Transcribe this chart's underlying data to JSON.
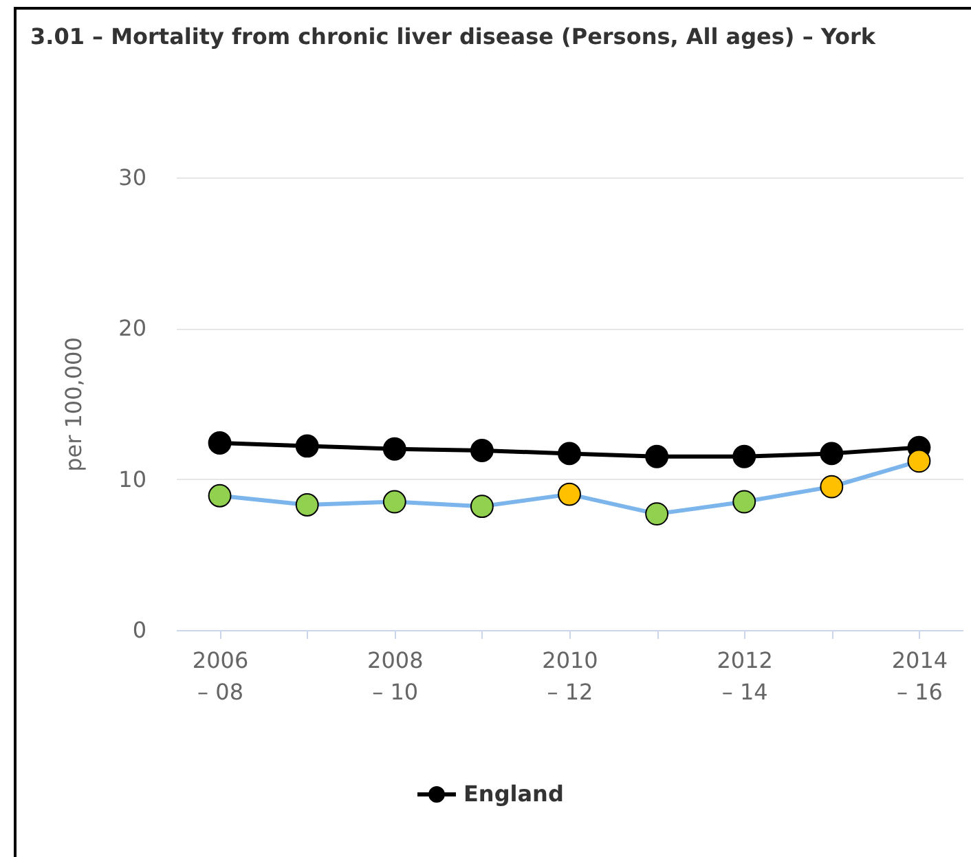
{
  "chart_data": {
    "type": "line",
    "title": "3.01 – Mortality from chronic liver disease (Persons, All ages) – York",
    "ylabel": "per 100,000",
    "categories": [
      "2006 – 08",
      null,
      "2008 – 10",
      null,
      "2010 – 12",
      null,
      "2012 – 14",
      null,
      "2014 – 16"
    ],
    "series": [
      {
        "name": "England",
        "color": "#000000",
        "values": [
          12.4,
          12.2,
          12.0,
          11.9,
          11.7,
          11.5,
          11.5,
          11.7,
          12.1
        ]
      },
      {
        "color": "#7cb5ec",
        "colors": [
          "#92d050",
          "#92d050",
          "#92d050",
          "#92d050",
          "#ffc000",
          "#92d050",
          "#92d050",
          "#ffc000",
          "#ffc000"
        ],
        "values": [
          8.9,
          8.3,
          8.5,
          8.2,
          9.0,
          7.7,
          8.5,
          9.5,
          11.2
        ]
      }
    ],
    "ylim": [
      0,
      30
    ],
    "yticks": [
      0,
      10,
      20,
      30
    ],
    "grid": "y",
    "legend": "bottom",
    "marker": "circle"
  }
}
